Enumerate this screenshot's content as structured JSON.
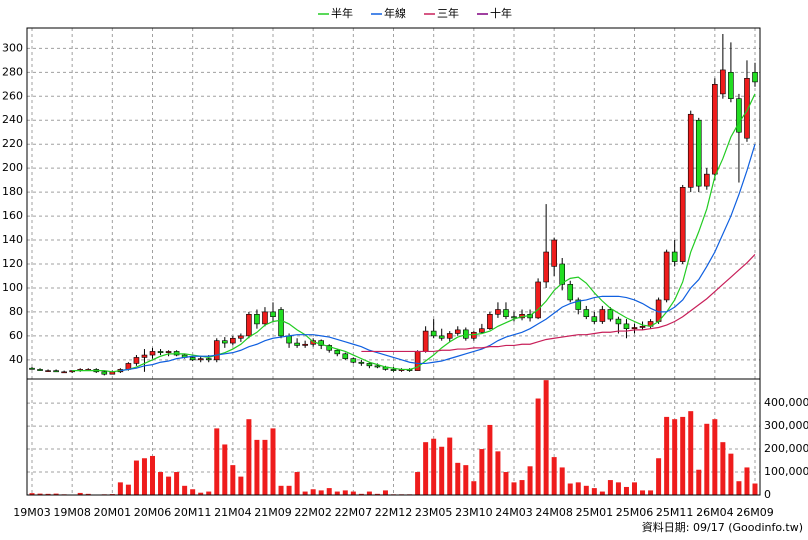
{
  "chart_data": {
    "type": "candlestick",
    "categories": [
      "19M03",
      null,
      null,
      null,
      null,
      "19M08",
      null,
      null,
      null,
      null,
      "20M01",
      null,
      null,
      null,
      null,
      "20M06",
      null,
      null,
      null,
      null,
      "20M11",
      null,
      null,
      null,
      null,
      "21M04",
      null,
      null,
      null,
      null,
      "21M09",
      null,
      null,
      null,
      null,
      "22M02",
      null,
      null,
      null,
      null,
      "22M07",
      null,
      null,
      null,
      null,
      "22M12",
      null,
      null,
      null,
      null,
      "23M05",
      null,
      null,
      null,
      null,
      "23M10",
      null,
      null,
      null,
      null,
      "24M03",
      null,
      null,
      null,
      null,
      "24M08",
      null,
      null,
      null,
      null,
      "25M01",
      null,
      null,
      null,
      null,
      "25M06",
      null,
      null,
      null,
      null,
      "25M11",
      null,
      null,
      null,
      null,
      "26M04",
      null,
      null,
      null,
      null,
      "26M09"
    ],
    "open": [
      33,
      32,
      31,
      31,
      30,
      30,
      31,
      32,
      32,
      30,
      28,
      30,
      32,
      37,
      42,
      44,
      47,
      46,
      47,
      44,
      42,
      40,
      41,
      40,
      56,
      54,
      58,
      60,
      78,
      70,
      80,
      82,
      60,
      54,
      52,
      53,
      56,
      52,
      48,
      45,
      41,
      38,
      37,
      35,
      34,
      32,
      31,
      32,
      31,
      47,
      64,
      60,
      58,
      62,
      65,
      58,
      63,
      66,
      78,
      82,
      76,
      75,
      78,
      75,
      105,
      118,
      120,
      103,
      90,
      82,
      76,
      72,
      82,
      74,
      70,
      66,
      67,
      68,
      72,
      90,
      130,
      122,
      184,
      240,
      185,
      195,
      262,
      280,
      258,
      225,
      280
    ],
    "high": [
      34,
      33,
      32,
      32,
      31,
      31,
      33,
      33,
      33,
      31,
      31,
      33,
      38,
      44,
      49,
      50,
      49,
      48,
      48,
      45,
      43,
      43,
      44,
      58,
      59,
      60,
      62,
      80,
      82,
      84,
      88,
      84,
      62,
      58,
      56,
      58,
      57,
      53,
      49,
      46,
      42,
      40,
      38,
      37,
      35,
      34,
      33,
      33,
      48,
      68,
      74,
      66,
      64,
      68,
      67,
      64,
      70,
      80,
      88,
      88,
      80,
      82,
      82,
      108,
      170,
      142,
      125,
      106,
      92,
      85,
      80,
      85,
      84,
      76,
      74,
      70,
      72,
      74,
      92,
      132,
      140,
      186,
      248,
      242,
      200,
      275,
      312,
      305,
      262,
      290,
      288
    ],
    "low": [
      32,
      31,
      30,
      30,
      29,
      29,
      30,
      31,
      29,
      27,
      28,
      29,
      31,
      35,
      30,
      41,
      44,
      43,
      43,
      41,
      39,
      38,
      38,
      38,
      50,
      52,
      55,
      58,
      66,
      68,
      72,
      58,
      50,
      50,
      50,
      51,
      49,
      46,
      43,
      40,
      37,
      35,
      33,
      33,
      31,
      30,
      30,
      30,
      31,
      46,
      58,
      56,
      55,
      60,
      56,
      56,
      62,
      65,
      75,
      74,
      72,
      73,
      72,
      74,
      100,
      110,
      98,
      88,
      78,
      74,
      70,
      70,
      72,
      62,
      58,
      62,
      65,
      66,
      70,
      88,
      118,
      120,
      180,
      180,
      182,
      190,
      258,
      255,
      188,
      222,
      268
    ],
    "close": [
      32,
      31,
      31,
      30,
      30,
      31,
      32,
      32,
      30,
      28,
      30,
      32,
      37,
      42,
      44,
      47,
      46,
      47,
      44,
      42,
      40,
      41,
      40,
      56,
      54,
      58,
      60,
      78,
      70,
      80,
      76,
      60,
      54,
      52,
      53,
      56,
      52,
      48,
      45,
      41,
      38,
      37,
      35,
      34,
      32,
      31,
      32,
      31,
      47,
      64,
      60,
      58,
      62,
      65,
      58,
      63,
      66,
      78,
      82,
      76,
      75,
      78,
      75,
      105,
      130,
      140,
      103,
      90,
      82,
      76,
      72,
      82,
      74,
      70,
      66,
      67,
      68,
      72,
      90,
      130,
      122,
      184,
      245,
      185,
      195,
      270,
      282,
      258,
      230,
      275,
      272
    ],
    "up_color": "#ee1c1c",
    "down_color": "#22dd22",
    "ylim": [
      24,
      317
    ],
    "yticks": [
      40,
      60,
      80,
      100,
      120,
      140,
      160,
      180,
      200,
      220,
      240,
      260,
      280,
      300
    ],
    "grid": true,
    "series": [
      {
        "name": "半年",
        "color": "#22cc22",
        "values": [
          null,
          null,
          null,
          null,
          null,
          31,
          31,
          31,
          31,
          31,
          30,
          31,
          32,
          34,
          37,
          40,
          43,
          45,
          45,
          45,
          44,
          43,
          42,
          44,
          46,
          49,
          53,
          59,
          63,
          69,
          72,
          73,
          70,
          65,
          61,
          55,
          53,
          51,
          49,
          47,
          44,
          41,
          38,
          36,
          34,
          33,
          32,
          32,
          34,
          39,
          44,
          50,
          55,
          59,
          61,
          61,
          62,
          64,
          68,
          71,
          74,
          76,
          77,
          82,
          89,
          98,
          104,
          108,
          109,
          104,
          96,
          89,
          83,
          79,
          75,
          72,
          69,
          68,
          72,
          80,
          90,
          105,
          130,
          147,
          166,
          193,
          208,
          226,
          238,
          248,
          262
        ]
      },
      {
        "name": "年線",
        "color": "#1060e0",
        "values": [
          null,
          null,
          null,
          null,
          null,
          null,
          null,
          null,
          null,
          null,
          null,
          31,
          32,
          33,
          35,
          36,
          38,
          39,
          41,
          42,
          43,
          43,
          43,
          44,
          45,
          46,
          48,
          51,
          53,
          56,
          58,
          59,
          60,
          61,
          61,
          61,
          60,
          59,
          57,
          55,
          53,
          51,
          48,
          46,
          44,
          42,
          40,
          38,
          37,
          37,
          38,
          39,
          41,
          43,
          45,
          47,
          49,
          52,
          56,
          59,
          61,
          63,
          66,
          70,
          74,
          79,
          84,
          87,
          89,
          90,
          92,
          93,
          93,
          93,
          92,
          90,
          87,
          83,
          80,
          80,
          84,
          90,
          100,
          107,
          118,
          130,
          145,
          160,
          178,
          198,
          220
        ]
      },
      {
        "name": "三年",
        "color": "#c8205a",
        "values": [
          null,
          null,
          null,
          null,
          null,
          null,
          null,
          null,
          null,
          null,
          null,
          null,
          null,
          null,
          null,
          null,
          null,
          null,
          null,
          null,
          null,
          null,
          null,
          null,
          null,
          null,
          null,
          null,
          null,
          null,
          null,
          null,
          null,
          null,
          null,
          null,
          null,
          null,
          null,
          null,
          null,
          47,
          47,
          47,
          47,
          47,
          47,
          47,
          47,
          47,
          47,
          48,
          48,
          49,
          49,
          50,
          50,
          51,
          51,
          52,
          52,
          53,
          53,
          55,
          57,
          58,
          59,
          60,
          61,
          61,
          62,
          63,
          63,
          64,
          64,
          65,
          65,
          66,
          67,
          69,
          72,
          76,
          81,
          86,
          91,
          97,
          103,
          109,
          115,
          121,
          128
        ]
      },
      {
        "name": "十年",
        "color": "#800080",
        "values": [
          null,
          null,
          null,
          null,
          null,
          null,
          null,
          null,
          null,
          null,
          null,
          null,
          null,
          null,
          null,
          null,
          null,
          null,
          null,
          null,
          null,
          null,
          null,
          null,
          null,
          null,
          null,
          null,
          null,
          null,
          null,
          null,
          null,
          null,
          null,
          null,
          null,
          null,
          null,
          null,
          null,
          null,
          null,
          null,
          null,
          null,
          null,
          null,
          null,
          null,
          null,
          null,
          null,
          null,
          null,
          null,
          null,
          null,
          null,
          null,
          null,
          null,
          null,
          null,
          null,
          null,
          null,
          null,
          null,
          null,
          null,
          null,
          null,
          null,
          null,
          null,
          null,
          null,
          null,
          null,
          null,
          null,
          null,
          null,
          null,
          null,
          null,
          null,
          null,
          null,
          null
        ]
      }
    ],
    "volume": {
      "color": "#ee1c1c",
      "values": [
        8000,
        6000,
        5000,
        6000,
        3000,
        2000,
        9000,
        5000,
        2000,
        3000,
        4000,
        55000,
        45000,
        150000,
        160000,
        170000,
        100000,
        80000,
        100000,
        40000,
        25000,
        10000,
        15000,
        290000,
        220000,
        130000,
        80000,
        330000,
        240000,
        240000,
        290000,
        40000,
        40000,
        100000,
        15000,
        25000,
        20000,
        30000,
        15000,
        20000,
        15000,
        5000,
        15000,
        5000,
        20000,
        3000,
        3000,
        3000,
        100000,
        230000,
        245000,
        210000,
        250000,
        140000,
        130000,
        60000,
        200000,
        305000,
        190000,
        100000,
        55000,
        65000,
        125000,
        420000,
        500000,
        165000,
        120000,
        50000,
        55000,
        40000,
        30000,
        15000,
        65000,
        55000,
        35000,
        55000,
        20000,
        20000,
        160000,
        340000,
        330000,
        340000,
        365000,
        110000,
        310000,
        330000,
        230000,
        180000,
        60000,
        120000,
        50000
      ],
      "ylim": [
        0,
        505000
      ],
      "yticks": [
        0,
        {
          "value": 100000,
          "label": "100,000"
        },
        {
          "value": 200000,
          "label": "200,000"
        },
        {
          "value": 300000,
          "label": "300,000"
        },
        {
          "value": 400000,
          "label": "400,000"
        }
      ]
    },
    "footer": "資料日期: 09/17 (Goodinfo.tw)"
  }
}
